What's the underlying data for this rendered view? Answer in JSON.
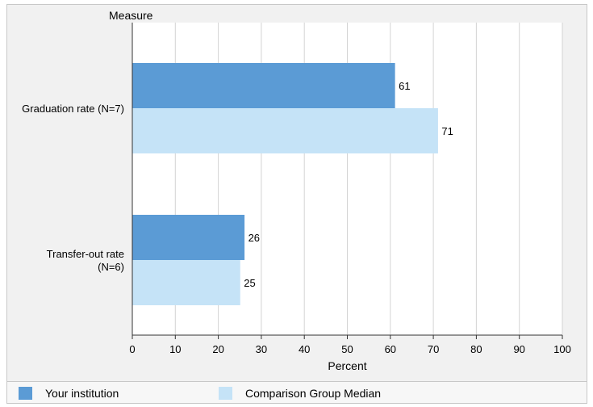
{
  "chart_data": {
    "type": "bar",
    "orientation": "horizontal",
    "title": "",
    "ylabel": "Measure",
    "xlabel": "Percent",
    "categories": [
      "Graduation rate (N=7)",
      "Transfer-out rate (N=6)"
    ],
    "category_lines": [
      [
        "Graduation rate (N=7)"
      ],
      [
        "Transfer-out rate",
        "(N=6)"
      ]
    ],
    "series": [
      {
        "name": "Your institution",
        "values": [
          61,
          26
        ],
        "color": "#5b9bd5"
      },
      {
        "name": "Comparison Group Median",
        "values": [
          71,
          25
        ],
        "color": "#c5e3f7"
      }
    ],
    "xlim": [
      0,
      100
    ],
    "xticks": [
      0,
      10,
      20,
      30,
      40,
      50,
      60,
      70,
      80,
      90,
      100
    ],
    "grid": true,
    "legend_position": "bottom"
  }
}
